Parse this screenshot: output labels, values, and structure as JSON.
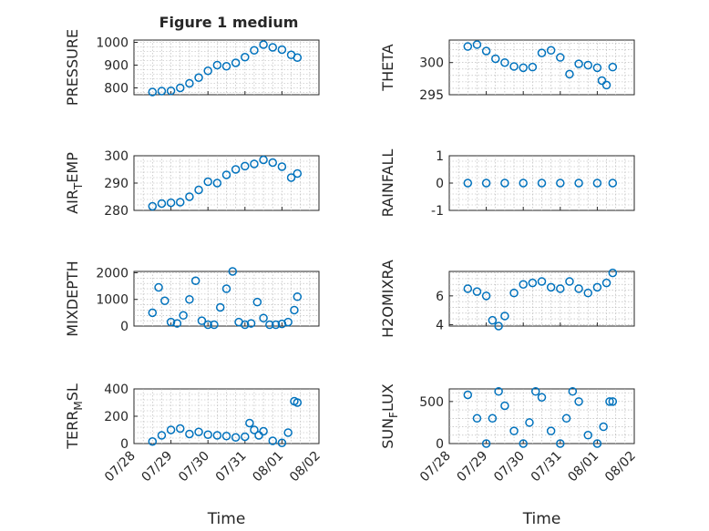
{
  "figure": {
    "title": "Figure 1 medium",
    "bg": "#ffffff"
  },
  "chart_data": [
    {
      "type": "scatter",
      "ylabel": "PRESSURE",
      "ylim": [
        770,
        1010
      ],
      "yticks": [
        800,
        900,
        1000
      ],
      "xtick_labels_shown": false,
      "grid": true,
      "marker": "circle",
      "color": "#0072BD",
      "x": [
        "2019-07-28T12:00",
        "2019-07-28T18:00",
        "2019-07-29T00:00",
        "2019-07-29T06:00",
        "2019-07-29T12:00",
        "2019-07-29T18:00",
        "2019-07-30T00:00",
        "2019-07-30T06:00",
        "2019-07-30T12:00",
        "2019-07-30T18:00",
        "2019-07-31T00:00",
        "2019-07-31T06:00",
        "2019-07-31T12:00",
        "2019-07-31T18:00",
        "2019-08-01T00:00",
        "2019-08-01T06:00",
        "2019-08-01T10:00"
      ],
      "y": [
        782,
        786,
        787,
        800,
        820,
        845,
        875,
        900,
        895,
        910,
        935,
        965,
        990,
        978,
        968,
        945,
        933
      ]
    },
    {
      "type": "scatter",
      "ylabel": "THETA",
      "ylim": [
        295,
        303.5
      ],
      "yticks": [
        295,
        300
      ],
      "xtick_labels_shown": false,
      "grid": true,
      "marker": "circle",
      "color": "#0072BD",
      "x": [
        "2019-07-28T12:00",
        "2019-07-28T18:00",
        "2019-07-29T00:00",
        "2019-07-29T06:00",
        "2019-07-29T12:00",
        "2019-07-29T18:00",
        "2019-07-30T00:00",
        "2019-07-30T06:00",
        "2019-07-30T12:00",
        "2019-07-30T18:00",
        "2019-07-31T00:00",
        "2019-07-31T06:00",
        "2019-07-31T12:00",
        "2019-07-31T18:00",
        "2019-08-01T00:00",
        "2019-08-01T03:00",
        "2019-08-01T06:00",
        "2019-08-01T10:00"
      ],
      "y": [
        302.5,
        302.8,
        301.8,
        300.6,
        300,
        299.4,
        299.2,
        299.3,
        301.5,
        301.9,
        300.8,
        298.2,
        299.8,
        299.6,
        299.2,
        297.2,
        296.5,
        299.3
      ]
    },
    {
      "type": "scatter",
      "ylabel": "AIR_TEMP",
      "ylim": [
        280,
        300
      ],
      "yticks": [
        280,
        290,
        300
      ],
      "xtick_labels_shown": false,
      "grid": true,
      "marker": "circle",
      "color": "#0072BD",
      "x": [
        "2019-07-28T12:00",
        "2019-07-28T18:00",
        "2019-07-29T00:00",
        "2019-07-29T06:00",
        "2019-07-29T12:00",
        "2019-07-29T18:00",
        "2019-07-30T00:00",
        "2019-07-30T06:00",
        "2019-07-30T12:00",
        "2019-07-30T18:00",
        "2019-07-31T00:00",
        "2019-07-31T06:00",
        "2019-07-31T12:00",
        "2019-07-31T18:00",
        "2019-08-01T00:00",
        "2019-08-01T06:00",
        "2019-08-01T10:00"
      ],
      "y": [
        281.5,
        282.5,
        282.8,
        283,
        285,
        287.5,
        290.5,
        290,
        293,
        295,
        296.2,
        297,
        298.5,
        297.5,
        296,
        292,
        293.5
      ]
    },
    {
      "type": "scatter",
      "ylabel": "RAINFALL",
      "ylim": [
        -1,
        1
      ],
      "yticks": [
        -1,
        0,
        1
      ],
      "xtick_labels_shown": false,
      "grid": true,
      "marker": "circle",
      "color": "#0072BD",
      "x": [
        "2019-07-28T12:00",
        "2019-07-29T00:00",
        "2019-07-29T12:00",
        "2019-07-30T00:00",
        "2019-07-30T12:00",
        "2019-07-31T00:00",
        "2019-07-31T12:00",
        "2019-08-01T00:00",
        "2019-08-01T10:00"
      ],
      "y": [
        0,
        0,
        0,
        0,
        0,
        0,
        0,
        0,
        0
      ]
    },
    {
      "type": "scatter",
      "ylabel": "MIXDEPTH",
      "ylim": [
        0,
        2050
      ],
      "yticks": [
        0,
        1000,
        2000
      ],
      "xtick_labels_shown": false,
      "grid": true,
      "marker": "circle",
      "color": "#0072BD",
      "x": [
        "2019-07-28T12:00",
        "2019-07-28T16:00",
        "2019-07-28T20:00",
        "2019-07-29T00:00",
        "2019-07-29T04:00",
        "2019-07-29T08:00",
        "2019-07-29T12:00",
        "2019-07-29T16:00",
        "2019-07-29T20:00",
        "2019-07-30T00:00",
        "2019-07-30T04:00",
        "2019-07-30T08:00",
        "2019-07-30T12:00",
        "2019-07-30T16:00",
        "2019-07-30T20:00",
        "2019-07-31T00:00",
        "2019-07-31T04:00",
        "2019-07-31T08:00",
        "2019-07-31T12:00",
        "2019-07-31T16:00",
        "2019-07-31T20:00",
        "2019-08-01T00:00",
        "2019-08-01T04:00",
        "2019-08-01T08:00",
        "2019-08-01T10:00"
      ],
      "y": [
        500,
        1450,
        950,
        150,
        100,
        400,
        1000,
        1700,
        200,
        50,
        50,
        700,
        1400,
        2050,
        150,
        50,
        100,
        900,
        300,
        50,
        50,
        80,
        150,
        600,
        1100
      ]
    },
    {
      "type": "scatter",
      "ylabel": "H2OMIXRA",
      "ylim": [
        3.9,
        7.7
      ],
      "yticks": [
        4,
        6
      ],
      "xtick_labels_shown": false,
      "grid": true,
      "marker": "circle",
      "color": "#0072BD",
      "x": [
        "2019-07-28T12:00",
        "2019-07-28T18:00",
        "2019-07-29T00:00",
        "2019-07-29T04:00",
        "2019-07-29T08:00",
        "2019-07-29T12:00",
        "2019-07-29T18:00",
        "2019-07-30T00:00",
        "2019-07-30T06:00",
        "2019-07-30T12:00",
        "2019-07-30T18:00",
        "2019-07-31T00:00",
        "2019-07-31T06:00",
        "2019-07-31T12:00",
        "2019-07-31T18:00",
        "2019-08-01T00:00",
        "2019-08-01T06:00",
        "2019-08-01T10:00"
      ],
      "y": [
        6.5,
        6.3,
        6.0,
        4.3,
        3.9,
        4.6,
        6.2,
        6.8,
        6.9,
        7.0,
        6.6,
        6.5,
        7.0,
        6.5,
        6.2,
        6.6,
        6.9,
        7.6
      ]
    },
    {
      "type": "scatter",
      "ylabel": "TERR_MSL",
      "ylim": [
        0,
        400
      ],
      "yticks": [
        0,
        200,
        400
      ],
      "xtick_labels_shown": true,
      "xlabel": "Time",
      "grid": true,
      "marker": "circle",
      "color": "#0072BD",
      "x": [
        "2019-07-28T12:00",
        "2019-07-28T18:00",
        "2019-07-29T00:00",
        "2019-07-29T06:00",
        "2019-07-29T12:00",
        "2019-07-29T18:00",
        "2019-07-30T00:00",
        "2019-07-30T06:00",
        "2019-07-30T12:00",
        "2019-07-30T18:00",
        "2019-07-31T00:00",
        "2019-07-31T03:00",
        "2019-07-31T06:00",
        "2019-07-31T09:00",
        "2019-07-31T12:00",
        "2019-07-31T18:00",
        "2019-08-01T00:00",
        "2019-08-01T04:00",
        "2019-08-01T08:00",
        "2019-08-01T10:00"
      ],
      "y": [
        15,
        60,
        100,
        110,
        70,
        85,
        65,
        60,
        55,
        45,
        50,
        150,
        100,
        60,
        90,
        20,
        5,
        80,
        310,
        300
      ]
    },
    {
      "type": "scatter",
      "ylabel": "SUN_FLUX",
      "ylim": [
        0,
        650
      ],
      "yticks": [
        0,
        500
      ],
      "xtick_labels_shown": true,
      "xlabel": "Time",
      "grid": true,
      "marker": "circle",
      "color": "#0072BD",
      "x": [
        "2019-07-28T12:00",
        "2019-07-28T18:00",
        "2019-07-29T00:00",
        "2019-07-29T04:00",
        "2019-07-29T08:00",
        "2019-07-29T12:00",
        "2019-07-29T18:00",
        "2019-07-30T00:00",
        "2019-07-30T04:00",
        "2019-07-30T08:00",
        "2019-07-30T12:00",
        "2019-07-30T18:00",
        "2019-07-31T00:00",
        "2019-07-31T04:00",
        "2019-07-31T08:00",
        "2019-07-31T12:00",
        "2019-07-31T18:00",
        "2019-08-01T00:00",
        "2019-08-01T04:00",
        "2019-08-01T08:00",
        "2019-08-01T10:00"
      ],
      "y": [
        580,
        300,
        0,
        300,
        620,
        450,
        150,
        0,
        250,
        620,
        550,
        150,
        0,
        300,
        620,
        500,
        100,
        0,
        200,
        500,
        500
      ]
    }
  ],
  "x_axis": {
    "start": "2019-07-28T00:00",
    "end": "2019-08-02T00:00",
    "ticks": [
      "2019-07-28T00:00",
      "2019-07-29T00:00",
      "2019-07-30T00:00",
      "2019-07-31T00:00",
      "2019-08-01T00:00",
      "2019-08-02T00:00"
    ],
    "tick_labels": [
      "07/28",
      "07/29",
      "07/30",
      "07/31",
      "08/01",
      "08/02"
    ]
  }
}
